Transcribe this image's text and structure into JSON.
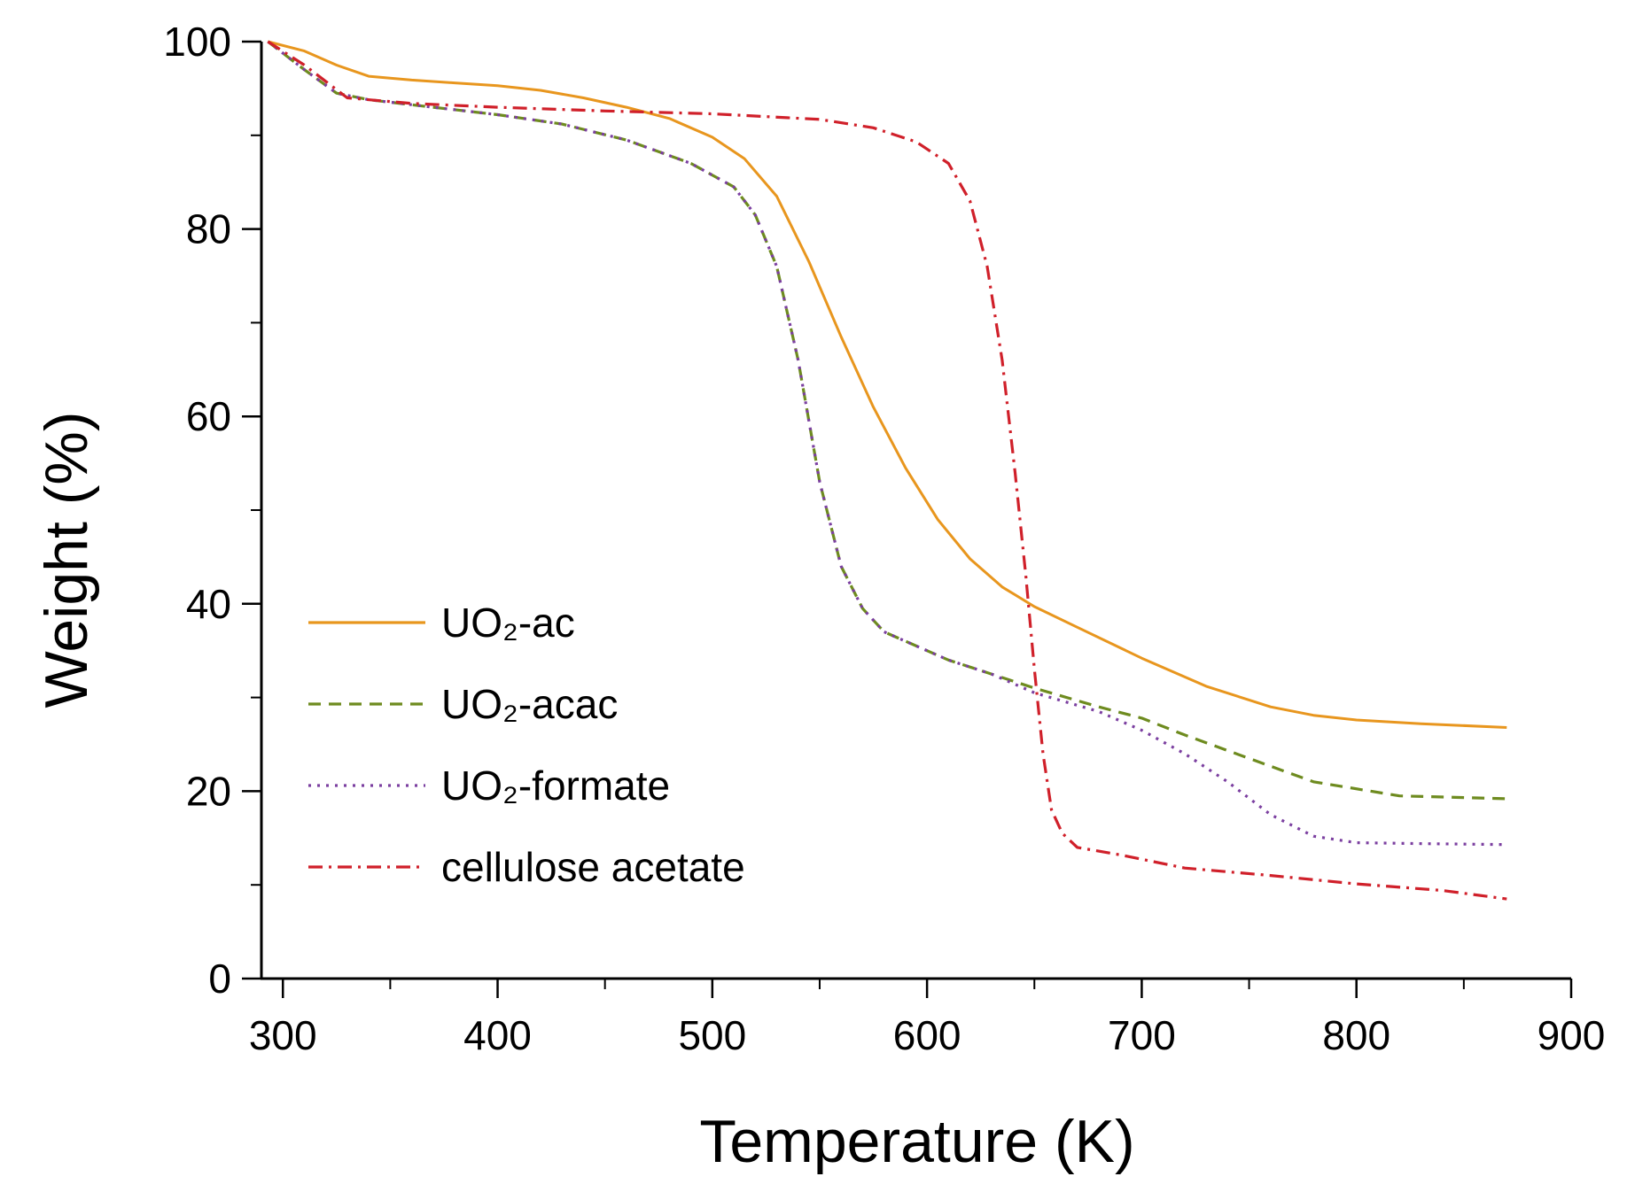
{
  "chart_data": {
    "type": "line",
    "title": "",
    "xlabel": "Temperature (K)",
    "ylabel": "Weight (%)",
    "xlim": [
      290,
      900
    ],
    "ylim": [
      0,
      100
    ],
    "xticks": [
      300,
      400,
      500,
      600,
      700,
      800,
      900
    ],
    "xtick_labels": [
      "300",
      "400",
      "500",
      "600",
      "700",
      "800",
      "900"
    ],
    "xminor": [
      350,
      450,
      550,
      650,
      750,
      850
    ],
    "yticks": [
      0,
      20,
      40,
      60,
      80,
      100
    ],
    "ytick_labels": [
      "0",
      "20",
      "40",
      "60",
      "80",
      "100"
    ],
    "yminor": [
      10,
      30,
      50,
      70,
      90
    ],
    "grid": false,
    "legend_position": "center-left",
    "series": [
      {
        "name": "UO₂-ac",
        "color": "#E8961E",
        "style": "solid",
        "x": [
          293,
          310,
          325,
          340,
          360,
          380,
          400,
          420,
          440,
          460,
          480,
          500,
          515,
          530,
          545,
          560,
          575,
          590,
          605,
          620,
          635,
          650,
          670,
          700,
          730,
          760,
          780,
          800,
          830,
          870
        ],
        "y": [
          100,
          99,
          97.5,
          96.3,
          95.9,
          95.6,
          95.3,
          94.8,
          94,
          93,
          91.8,
          89.8,
          87.5,
          83.5,
          76.5,
          68.5,
          61,
          54.5,
          49,
          44.8,
          41.8,
          39.7,
          37.5,
          34.2,
          31.2,
          29,
          28.1,
          27.6,
          27.2,
          26.8
        ]
      },
      {
        "name": "UO₂-acac",
        "color": "#6E8B1F",
        "style": "dashed",
        "x": [
          293,
          310,
          325,
          340,
          370,
          400,
          430,
          460,
          490,
          510,
          520,
          530,
          540,
          550,
          560,
          570,
          580,
          595,
          610,
          630,
          650,
          680,
          700,
          720,
          750,
          780,
          820,
          870
        ],
        "y": [
          100,
          97,
          94.5,
          93.8,
          93,
          92.2,
          91.2,
          89.5,
          87,
          84.5,
          81.5,
          76,
          66,
          53,
          44,
          39.5,
          37,
          35.5,
          34,
          32.5,
          31,
          29,
          27.8,
          26,
          23.5,
          21,
          19.5,
          19.2
        ]
      },
      {
        "name": "UO₂-formate",
        "color": "#7B3FA0",
        "style": "dotted",
        "x": [
          293,
          310,
          325,
          340,
          370,
          400,
          430,
          460,
          490,
          510,
          520,
          530,
          540,
          550,
          560,
          570,
          580,
          595,
          610,
          630,
          650,
          680,
          700,
          720,
          740,
          760,
          780,
          800,
          830,
          870
        ],
        "y": [
          100,
          97,
          94.5,
          93.8,
          93,
          92.2,
          91.2,
          89.5,
          87,
          84.5,
          81.5,
          76,
          66,
          53,
          44,
          39.5,
          37,
          35.5,
          34,
          32.5,
          30.5,
          28.5,
          26.5,
          24,
          21,
          17.5,
          15.2,
          14.5,
          14.4,
          14.3
        ]
      },
      {
        "name": "cellulose acetate",
        "color": "#D0202A",
        "style": "dashdot",
        "x": [
          293,
          310,
          330,
          360,
          400,
          450,
          500,
          550,
          575,
          595,
          610,
          620,
          628,
          635,
          641,
          646,
          650,
          654,
          658,
          663,
          670,
          690,
          720,
          760,
          800,
          840,
          870
        ],
        "y": [
          100,
          97.5,
          94,
          93.4,
          93,
          92.6,
          92.3,
          91.7,
          90.8,
          89.3,
          87,
          83,
          76,
          66,
          54,
          43,
          33,
          24,
          18,
          15.5,
          14,
          13.2,
          11.8,
          11,
          10.1,
          9.4,
          8.5
        ]
      }
    ]
  }
}
